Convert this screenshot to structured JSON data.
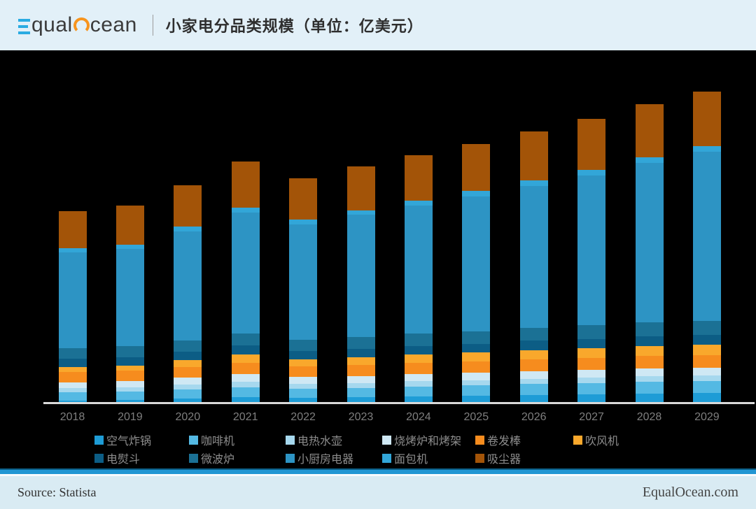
{
  "header": {
    "logo": {
      "e_part": "qual",
      "o_part": "cean"
    },
    "title": "小家电分品类规模（单位：亿美元）"
  },
  "chart_data": {
    "type": "bar",
    "stacked": true,
    "title": "小家电分品类规模（单位：亿美元）",
    "unit": "亿美元",
    "categories": [
      "2018",
      "2019",
      "2020",
      "2021",
      "2022",
      "2023",
      "2024",
      "2025",
      "2026",
      "2027",
      "2028",
      "2029"
    ],
    "series": [
      {
        "name": "空气炸锅",
        "color": "#1e9cd6",
        "values": [
          20,
          25,
          40,
          55,
          50,
          55,
          65,
          70,
          80,
          85,
          95,
          100
        ]
      },
      {
        "name": "咖啡机",
        "color": "#54b9e3",
        "values": [
          85,
          88,
          95,
          105,
          95,
          98,
          103,
          108,
          113,
          118,
          122,
          125
        ]
      },
      {
        "name": "电热水壶",
        "color": "#a6d8ee",
        "values": [
          45,
          46,
          50,
          54,
          48,
          50,
          51,
          52,
          53,
          54,
          55,
          55
        ]
      },
      {
        "name": "烧烤炉和烤架",
        "color": "#cfe8f4",
        "values": [
          60,
          62,
          70,
          78,
          70,
          72,
          74,
          76,
          78,
          79,
          80,
          80
        ]
      },
      {
        "name": "卷发棒",
        "color": "#f68c1e",
        "values": [
          105,
          107,
          112,
          120,
          108,
          112,
          115,
          118,
          122,
          125,
          128,
          130
        ]
      },
      {
        "name": "吹风机",
        "color": "#f9a82c",
        "values": [
          50,
          55,
          70,
          85,
          75,
          80,
          85,
          90,
          95,
          98,
          102,
          105
        ]
      },
      {
        "name": "电熨斗",
        "color": "#0c5d85",
        "values": [
          85,
          86,
          88,
          92,
          85,
          88,
          90,
          92,
          95,
          97,
          99,
          100
        ]
      },
      {
        "name": "微波炉",
        "color": "#1b7195",
        "values": [
          110,
          112,
          118,
          125,
          115,
          120,
          125,
          130,
          135,
          140,
          142,
          145
        ]
      },
      {
        "name": "小厨房电器",
        "color": "#2d94c4",
        "values": [
          985,
          1000,
          1120,
          1240,
          1190,
          1255,
          1320,
          1385,
          1460,
          1540,
          1640,
          1740
        ]
      },
      {
        "name": "面包机",
        "color": "#32a6d8",
        "values": [
          45,
          46,
          50,
          54,
          48,
          50,
          52,
          54,
          56,
          57,
          58,
          60
        ]
      },
      {
        "name": "吸尘器",
        "color": "#a35408",
        "values": [
          380,
          400,
          420,
          475,
          420,
          447,
          461,
          483,
          505,
          527,
          549,
          560
        ]
      }
    ],
    "totals": [
      1970,
      2027,
      2233,
      2483,
      2304,
      2427,
      2541,
      2658,
      2792,
      2920,
      3070,
      3200
    ],
    "ylim": [
      0,
      3500
    ],
    "yticks": [
      0,
      500,
      1000,
      1500,
      2000,
      2500,
      3000,
      3500
    ],
    "grid": false,
    "legend_position": "bottom",
    "plot_background": "#000000"
  },
  "footer": {
    "source": "Source: Statista",
    "site": "EqualOcean.com"
  }
}
